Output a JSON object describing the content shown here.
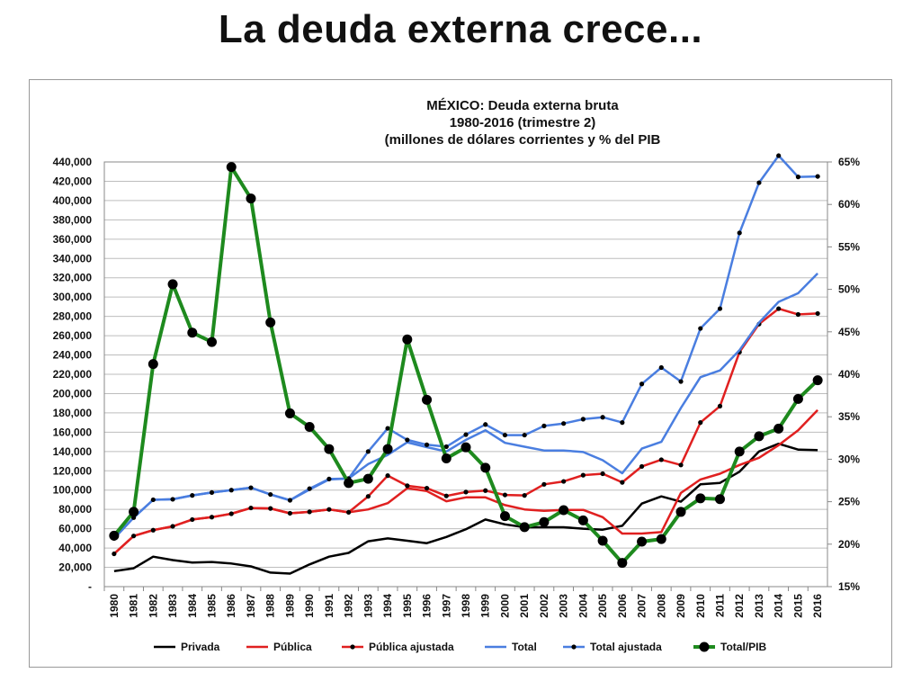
{
  "page_title": "La deuda externa crece...",
  "chart_data": {
    "type": "line",
    "title": [
      "MÉXICO: Deuda externa bruta",
      "1980-2016 (trimestre 2)",
      "(millones de dólares corrientes y % del PIB"
    ],
    "x": [
      "1980",
      "1981",
      "1982",
      "1983",
      "1984",
      "1985",
      "1986",
      "1987",
      "1988",
      "1989",
      "1990",
      "1991",
      "1992",
      "1993",
      "1994",
      "1995",
      "1996",
      "1997",
      "1998",
      "1999",
      "2000",
      "2001",
      "2002",
      "2003",
      "2004",
      "2005",
      "2006",
      "2007",
      "2008",
      "2009",
      "2010",
      "2011",
      "2012",
      "2013",
      "2014",
      "2015",
      "2016"
    ],
    "y_left": {
      "ylim": [
        0,
        440000
      ],
      "ticks": [
        0,
        20000,
        40000,
        60000,
        80000,
        100000,
        120000,
        140000,
        160000,
        180000,
        200000,
        220000,
        240000,
        260000,
        280000,
        300000,
        320000,
        340000,
        360000,
        380000,
        400000,
        420000,
        440000
      ],
      "tick_labels": [
        "-",
        "20,000",
        "40,000",
        "60,000",
        "80,000",
        "100,000",
        "120,000",
        "140,000",
        "160,000",
        "180,000",
        "200,000",
        "220,000",
        "240,000",
        "260,000",
        "280,000",
        "300,000",
        "320,000",
        "340,000",
        "360,000",
        "380,000",
        "400,000",
        "420,000",
        "440,000"
      ]
    },
    "y_right": {
      "ylim": [
        15,
        65
      ],
      "ticks": [
        15,
        20,
        25,
        30,
        35,
        40,
        45,
        50,
        55,
        60,
        65
      ],
      "tick_labels": [
        "15%",
        "20%",
        "25%",
        "30%",
        "35%",
        "40%",
        "45%",
        "50%",
        "55%",
        "60%",
        "65%"
      ]
    },
    "grid": "horizontal",
    "legend_position": "bottom",
    "series": [
      {
        "name": "Privada",
        "axis": "left",
        "color": "#000000",
        "marker": "none",
        "values": [
          16000,
          19000,
          31000,
          27500,
          25000,
          25500,
          24000,
          21000,
          14500,
          13500,
          23000,
          31000,
          35000,
          47000,
          50000,
          47500,
          45000,
          51500,
          59500,
          69500,
          64500,
          61500,
          61500,
          61500,
          60000,
          59000,
          63000,
          86000,
          93500,
          88000,
          106000,
          107500,
          119000,
          140000,
          148000,
          142000,
          141500
        ]
      },
      {
        "name": "Pública",
        "axis": "left",
        "color": "#e02020",
        "marker": "none",
        "values": [
          34000,
          52500,
          58500,
          62500,
          69500,
          72000,
          75500,
          81500,
          81000,
          76000,
          77500,
          80000,
          77000,
          80000,
          86500,
          102000,
          99000,
          88500,
          92500,
          92500,
          84500,
          80000,
          78500,
          79500,
          79500,
          72000,
          55000,
          55000,
          56500,
          97000,
          111000,
          117000,
          126000,
          133500,
          146500,
          162000,
          183000
        ]
      },
      {
        "name": "Pública ajustada",
        "axis": "left",
        "color": "#e02020",
        "marker": "small",
        "values": [
          34000,
          52500,
          58500,
          62500,
          69500,
          72000,
          75500,
          81500,
          81000,
          76000,
          77500,
          80000,
          77000,
          93500,
          115000,
          104500,
          102000,
          94000,
          98000,
          99500,
          95000,
          94500,
          106000,
          109000,
          115500,
          117000,
          108000,
          124500,
          131500,
          126000,
          170000,
          187000,
          243000,
          272000,
          288000,
          282000,
          283000
        ]
      },
      {
        "name": "Total",
        "axis": "left",
        "color": "#4a7ee0",
        "marker": "none",
        "values": [
          50000,
          71500,
          90000,
          90500,
          94500,
          97500,
          100000,
          102500,
          95500,
          89500,
          100500,
          111000,
          112000,
          127000,
          136500,
          149500,
          144500,
          140000,
          152000,
          162000,
          149000,
          145000,
          141000,
          141000,
          139500,
          131000,
          117500,
          143000,
          150000,
          185000,
          217000,
          224000,
          245000,
          273500,
          295000,
          304000,
          324500
        ]
      },
      {
        "name": "Total ajustada",
        "axis": "left",
        "color": "#4a7ee0",
        "marker": "small",
        "values": [
          50000,
          71500,
          90000,
          90500,
          94500,
          97500,
          100000,
          102500,
          95500,
          89500,
          101500,
          111500,
          112000,
          140000,
          164000,
          152000,
          147000,
          145000,
          157500,
          168000,
          157000,
          157000,
          166500,
          169000,
          173500,
          175500,
          170000,
          210000,
          227000,
          212500,
          267500,
          288000,
          366500,
          418500,
          446500,
          424500,
          425000
        ]
      },
      {
        "name": "Total/PIB",
        "axis": "right",
        "color": "#1e8a1e",
        "marker": "large",
        "values": [
          21,
          23.8,
          41.2,
          50.6,
          44.9,
          43.8,
          64.4,
          60.7,
          46.1,
          35.4,
          33.8,
          31.2,
          27.2,
          27.7,
          31.2,
          44.1,
          37.0,
          30.1,
          31.4,
          29.0,
          23.3,
          22.0,
          22.6,
          24.0,
          22.8,
          20.4,
          17.8,
          20.3,
          20.6,
          23.8,
          25.4,
          25.3,
          30.9,
          32.7,
          33.6,
          37.1,
          39.3
        ]
      }
    ]
  }
}
